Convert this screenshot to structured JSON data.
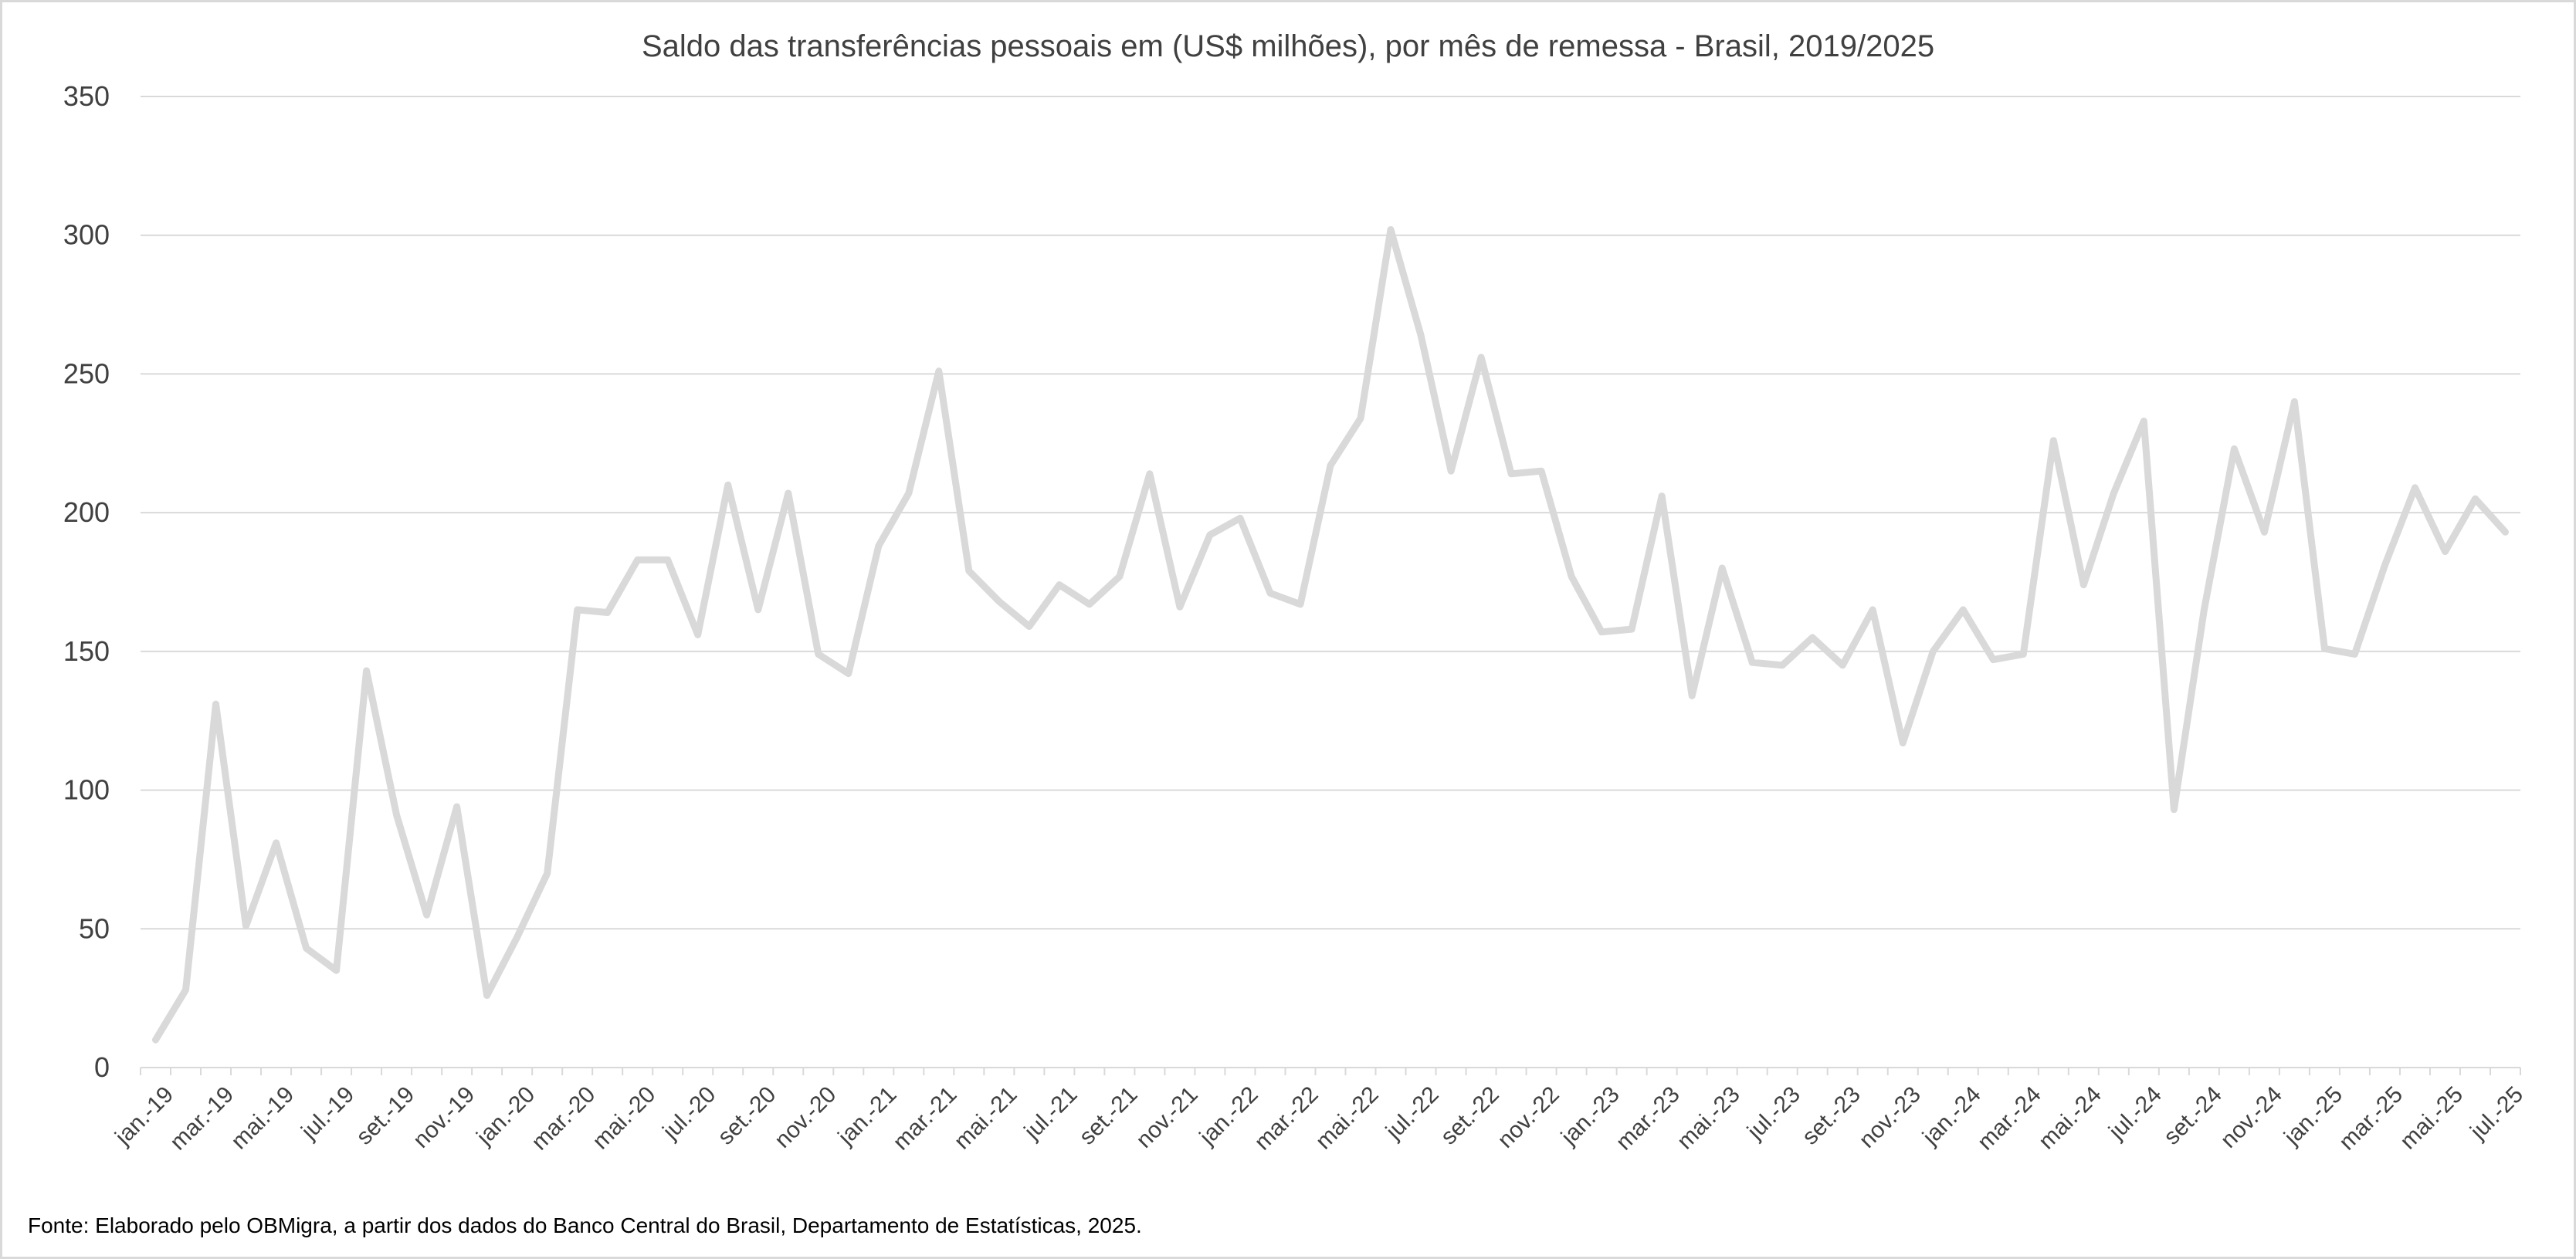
{
  "chart_data": {
    "type": "line",
    "title": "Saldo das transferências pessoais em (US$ milhões), por mês de remessa - Brasil, 2019/2025",
    "xlabel": "",
    "ylabel": "",
    "ylim": [
      0,
      350
    ],
    "yticks": [
      "0",
      "50",
      "100",
      "150",
      "200",
      "250",
      "300",
      "350"
    ],
    "grid": true,
    "legend": "none",
    "x": [
      "jan.-19",
      "fev.-19",
      "mar.-19",
      "abr.-19",
      "mai.-19",
      "jun.-19",
      "jul.-19",
      "ago.-19",
      "set.-19",
      "out.-19",
      "nov.-19",
      "dez.-19",
      "jan.-20",
      "fev.-20",
      "mar.-20",
      "abr.-20",
      "mai.-20",
      "jun.-20",
      "jul.-20",
      "ago.-20",
      "set.-20",
      "out.-20",
      "nov.-20",
      "dez.-20",
      "jan.-21",
      "fev.-21",
      "mar.-21",
      "abr.-21",
      "mai.-21",
      "jun.-21",
      "jul.-21",
      "ago.-21",
      "set.-21",
      "out.-21",
      "nov.-21",
      "dez.-21",
      "jan.-22",
      "fev.-22",
      "mar.-22",
      "abr.-22",
      "mai.-22",
      "jun.-22",
      "jul.-22",
      "ago.-22",
      "set.-22",
      "out.-22",
      "nov.-22",
      "dez.-22",
      "jan.-23",
      "fev.-23",
      "mar.-23",
      "abr.-23",
      "mai.-23",
      "jun.-23",
      "jul.-23",
      "ago.-23",
      "set.-23",
      "out.-23",
      "nov.-23",
      "dez.-23",
      "jan.-24",
      "fev.-24",
      "mar.-24",
      "abr.-24",
      "mai.-24",
      "jun.-24",
      "jul.-24",
      "ago.-24",
      "set.-24",
      "out.-24",
      "nov.-24",
      "dez.-24",
      "jan.-25",
      "fev.-25",
      "mar.-25",
      "abr.-25",
      "mai.-25",
      "jun.-25",
      "jul.-25"
    ],
    "xtick_labels": [
      "jan.-19",
      "mar.-19",
      "mai.-19",
      "jul.-19",
      "set.-19",
      "nov.-19",
      "jan.-20",
      "mar.-20",
      "mai.-20",
      "jul.-20",
      "set.-20",
      "nov.-20",
      "jan.-21",
      "mar.-21",
      "mai.-21",
      "jul.-21",
      "set.-21",
      "nov.-21",
      "jan.-22",
      "mar.-22",
      "mai.-22",
      "jul.-22",
      "set.-22",
      "nov.-22",
      "jan.-23",
      "mar.-23",
      "mai.-23",
      "jul.-23",
      "set.-23",
      "nov.-23",
      "jan.-24",
      "mar.-24",
      "mai.-24",
      "jul.-24",
      "set.-24",
      "nov.-24",
      "jan.-25",
      "mar.-25",
      "mai.-25",
      "jul.-25"
    ],
    "series": [
      {
        "name": "Saldo",
        "color": "#d9d9d9",
        "values": [
          10,
          28,
          131,
          51,
          81,
          43,
          35,
          143,
          91,
          55,
          94,
          26,
          47,
          70,
          165,
          164,
          183,
          183,
          156,
          210,
          165,
          207,
          149,
          142,
          188,
          207,
          251,
          179,
          168,
          159,
          174,
          167,
          177,
          214,
          166,
          192,
          198,
          171,
          167,
          217,
          234,
          302,
          264,
          215,
          256,
          214,
          215,
          177,
          157,
          158,
          206,
          134,
          180,
          146,
          145,
          155,
          145,
          165,
          117,
          150,
          165,
          147,
          149,
          226,
          174,
          207,
          233,
          93,
          165,
          223,
          193,
          240,
          151,
          149,
          181,
          209,
          186,
          205,
          193
        ]
      }
    ]
  },
  "footnote": "Fonte:  Elaborado pelo OBMigra, a partir dos dados do Banco Central do Brasil, Departamento de Estatísticas, 2025."
}
